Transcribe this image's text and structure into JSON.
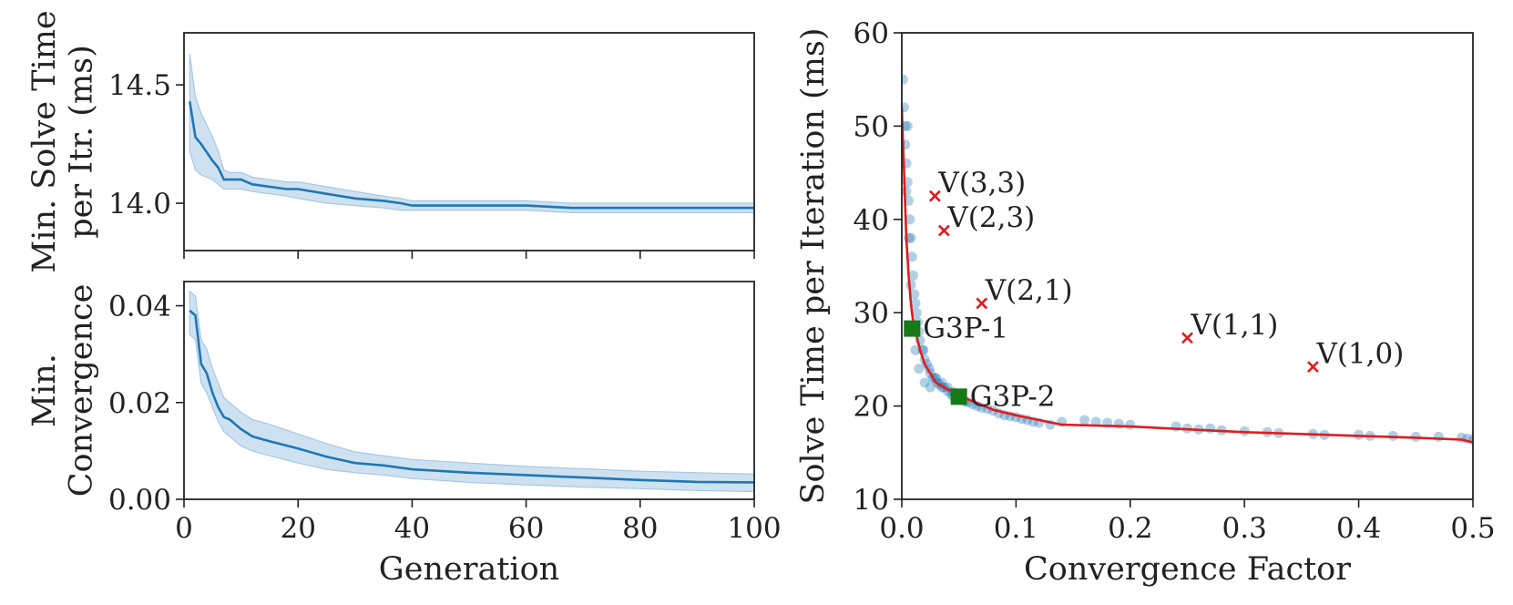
{
  "chart_data": [
    {
      "id": "top-left",
      "type": "line",
      "title": "",
      "ylabel": [
        "Min. Solve Time",
        "per Itr. (ms)"
      ],
      "xlabel": "",
      "xlim": [
        0,
        100
      ],
      "ylim": [
        13.8,
        14.72
      ],
      "xticks": [
        0,
        20,
        40,
        60,
        80,
        100
      ],
      "show_xtick_labels": false,
      "yticks": [
        14.0,
        14.5
      ],
      "ytick_labels": [
        "14.0",
        "14.5"
      ],
      "series": [
        {
          "name": "mean",
          "color": "#1f77b4",
          "band_color": "#a6c8e4",
          "x": [
            1,
            2,
            3,
            5,
            6,
            7,
            8,
            10,
            12,
            15,
            18,
            20,
            25,
            30,
            35,
            38,
            40,
            50,
            60,
            68,
            70,
            80,
            90,
            100
          ],
          "y": [
            14.43,
            14.28,
            14.25,
            14.18,
            14.15,
            14.1,
            14.1,
            14.1,
            14.08,
            14.07,
            14.06,
            14.06,
            14.04,
            14.02,
            14.01,
            14.0,
            13.99,
            13.99,
            13.99,
            13.98,
            13.98,
            13.98,
            13.98,
            13.98
          ],
          "lower": [
            14.22,
            14.14,
            14.12,
            14.1,
            14.08,
            14.06,
            14.06,
            14.06,
            14.05,
            14.04,
            14.03,
            14.02,
            14.0,
            13.99,
            13.98,
            13.97,
            13.97,
            13.97,
            13.97,
            13.96,
            13.96,
            13.96,
            13.96,
            13.96
          ],
          "upper": [
            14.63,
            14.45,
            14.38,
            14.28,
            14.22,
            14.14,
            14.13,
            14.13,
            14.11,
            14.1,
            14.09,
            14.09,
            14.07,
            14.05,
            14.03,
            14.02,
            14.01,
            14.01,
            14.01,
            14.0,
            14.0,
            14.0,
            14.0,
            14.0
          ]
        }
      ]
    },
    {
      "id": "bottom-left",
      "type": "line",
      "title": "",
      "ylabel": [
        "Min.",
        "Convergence"
      ],
      "xlabel": "Generation",
      "xlim": [
        0,
        100
      ],
      "ylim": [
        0.0,
        0.045
      ],
      "xticks": [
        0,
        20,
        40,
        60,
        80,
        100
      ],
      "xtick_labels": [
        "0",
        "20",
        "40",
        "60",
        "80",
        "100"
      ],
      "yticks": [
        0.0,
        0.02,
        0.04
      ],
      "ytick_labels": [
        "0.00",
        "0.02",
        "0.04"
      ],
      "series": [
        {
          "name": "mean",
          "color": "#1f77b4",
          "band_color": "#a6c8e4",
          "x": [
            1,
            2,
            3,
            4,
            5,
            6,
            7,
            8,
            10,
            12,
            15,
            20,
            25,
            30,
            35,
            40,
            50,
            60,
            70,
            80,
            90,
            100
          ],
          "y": [
            0.039,
            0.038,
            0.028,
            0.026,
            0.022,
            0.019,
            0.017,
            0.0165,
            0.0145,
            0.013,
            0.012,
            0.0105,
            0.0088,
            0.0075,
            0.007,
            0.0062,
            0.0055,
            0.005,
            0.0045,
            0.004,
            0.0036,
            0.0035
          ],
          "lower": [
            0.034,
            0.033,
            0.024,
            0.022,
            0.019,
            0.016,
            0.014,
            0.013,
            0.011,
            0.01,
            0.009,
            0.0075,
            0.0062,
            0.0055,
            0.005,
            0.0043,
            0.0035,
            0.003,
            0.0025,
            0.0022,
            0.0018,
            0.0016
          ],
          "upper": [
            0.043,
            0.042,
            0.033,
            0.031,
            0.027,
            0.024,
            0.021,
            0.02,
            0.018,
            0.0165,
            0.0155,
            0.0135,
            0.0115,
            0.0098,
            0.009,
            0.0082,
            0.0075,
            0.0068,
            0.0063,
            0.0058,
            0.0055,
            0.0052
          ]
        }
      ]
    },
    {
      "id": "right",
      "type": "scatter",
      "title": "",
      "xlabel": "Convergence Factor",
      "ylabel": "Solve Time per Iteration (ms)",
      "xlim": [
        0.0,
        0.5
      ],
      "ylim": [
        10,
        60
      ],
      "xticks": [
        0.0,
        0.1,
        0.2,
        0.3,
        0.4,
        0.5
      ],
      "xtick_labels": [
        "0.0",
        "0.1",
        "0.2",
        "0.3",
        "0.4",
        "0.5"
      ],
      "yticks": [
        10,
        20,
        30,
        40,
        50,
        60
      ],
      "ytick_labels": [
        "10",
        "20",
        "30",
        "40",
        "50",
        "60"
      ],
      "scatter": {
        "color": "#1f77b4",
        "x": [
          0.001,
          0.002,
          0.003,
          0.003,
          0.004,
          0.005,
          0.005,
          0.006,
          0.007,
          0.008,
          0.009,
          0.01,
          0.011,
          0.012,
          0.013,
          0.014,
          0.015,
          0.016,
          0.018,
          0.019,
          0.02,
          0.022,
          0.024,
          0.025,
          0.027,
          0.029,
          0.031,
          0.033,
          0.035,
          0.037,
          0.04,
          0.043,
          0.045,
          0.048,
          0.052,
          0.055,
          0.058,
          0.062,
          0.066,
          0.07,
          0.075,
          0.08,
          0.085,
          0.09,
          0.095,
          0.1,
          0.105,
          0.11,
          0.115,
          0.12,
          0.13,
          0.14,
          0.16,
          0.17,
          0.18,
          0.19,
          0.2,
          0.24,
          0.25,
          0.26,
          0.27,
          0.28,
          0.3,
          0.32,
          0.33,
          0.36,
          0.37,
          0.4,
          0.41,
          0.43,
          0.45,
          0.47,
          0.49,
          0.495,
          0.5,
          0.004,
          0.006,
          0.008,
          0.01,
          0.012,
          0.015,
          0.02,
          0.025,
          0.03,
          0.035,
          0.04,
          0.045,
          0.05
        ],
        "y": [
          55,
          52,
          50,
          48,
          46,
          44,
          50,
          42,
          40,
          38,
          36,
          34,
          32,
          31,
          30,
          29,
          28,
          27,
          26,
          26,
          25,
          24.5,
          24,
          23.5,
          23,
          23,
          22.5,
          22.3,
          22,
          22,
          21.6,
          21.3,
          21,
          21,
          20.8,
          20.5,
          20.4,
          20.2,
          20,
          19.8,
          19.7,
          19.5,
          19.2,
          19,
          18.9,
          18.8,
          18.6,
          18.5,
          18.3,
          18.2,
          18,
          18.3,
          18.5,
          18.3,
          18.2,
          18.1,
          18,
          17.8,
          17.6,
          17.5,
          17.6,
          17.4,
          17.3,
          17.2,
          17.1,
          17,
          16.9,
          16.9,
          16.8,
          16.8,
          16.7,
          16.7,
          16.6,
          16.5,
          16.4,
          43,
          38,
          33,
          28,
          26,
          24,
          22.5,
          22,
          23,
          22.5,
          22,
          21.5,
          21
        ]
      },
      "frontier": {
        "color": "#e41a1c",
        "x": [
          0.0,
          0.002,
          0.004,
          0.006,
          0.008,
          0.01,
          0.013,
          0.016,
          0.02,
          0.025,
          0.03,
          0.04,
          0.05,
          0.06,
          0.07,
          0.08,
          0.1,
          0.12,
          0.14,
          0.2,
          0.25,
          0.3,
          0.35,
          0.4,
          0.45,
          0.49,
          0.5
        ],
        "y": [
          52,
          45,
          38,
          34,
          31,
          29,
          27.5,
          26,
          24.5,
          23.5,
          22.5,
          21.8,
          21.2,
          20.6,
          20.1,
          19.6,
          19,
          18.5,
          18,
          17.8,
          17.5,
          17.2,
          17,
          16.8,
          16.6,
          16.4,
          16.1
        ]
      },
      "markers": [
        {
          "label": "V(3,3)",
          "x": 0.029,
          "y": 42.5,
          "kind": "x",
          "color": "#e41a1c"
        },
        {
          "label": "V(2,3)",
          "x": 0.037,
          "y": 38.8,
          "kind": "x",
          "color": "#e41a1c"
        },
        {
          "label": "V(2,1)",
          "x": 0.07,
          "y": 31.0,
          "kind": "x",
          "color": "#e41a1c"
        },
        {
          "label": "V(1,1)",
          "x": 0.25,
          "y": 27.3,
          "kind": "x",
          "color": "#e41a1c"
        },
        {
          "label": "V(1,0)",
          "x": 0.36,
          "y": 24.2,
          "kind": "x",
          "color": "#e41a1c"
        },
        {
          "label": "G3P-1",
          "x": 0.009,
          "y": 28.3,
          "kind": "square",
          "color": "#167a16"
        },
        {
          "label": "G3P-2",
          "x": 0.05,
          "y": 21.0,
          "kind": "square",
          "color": "#167a16"
        }
      ]
    }
  ]
}
